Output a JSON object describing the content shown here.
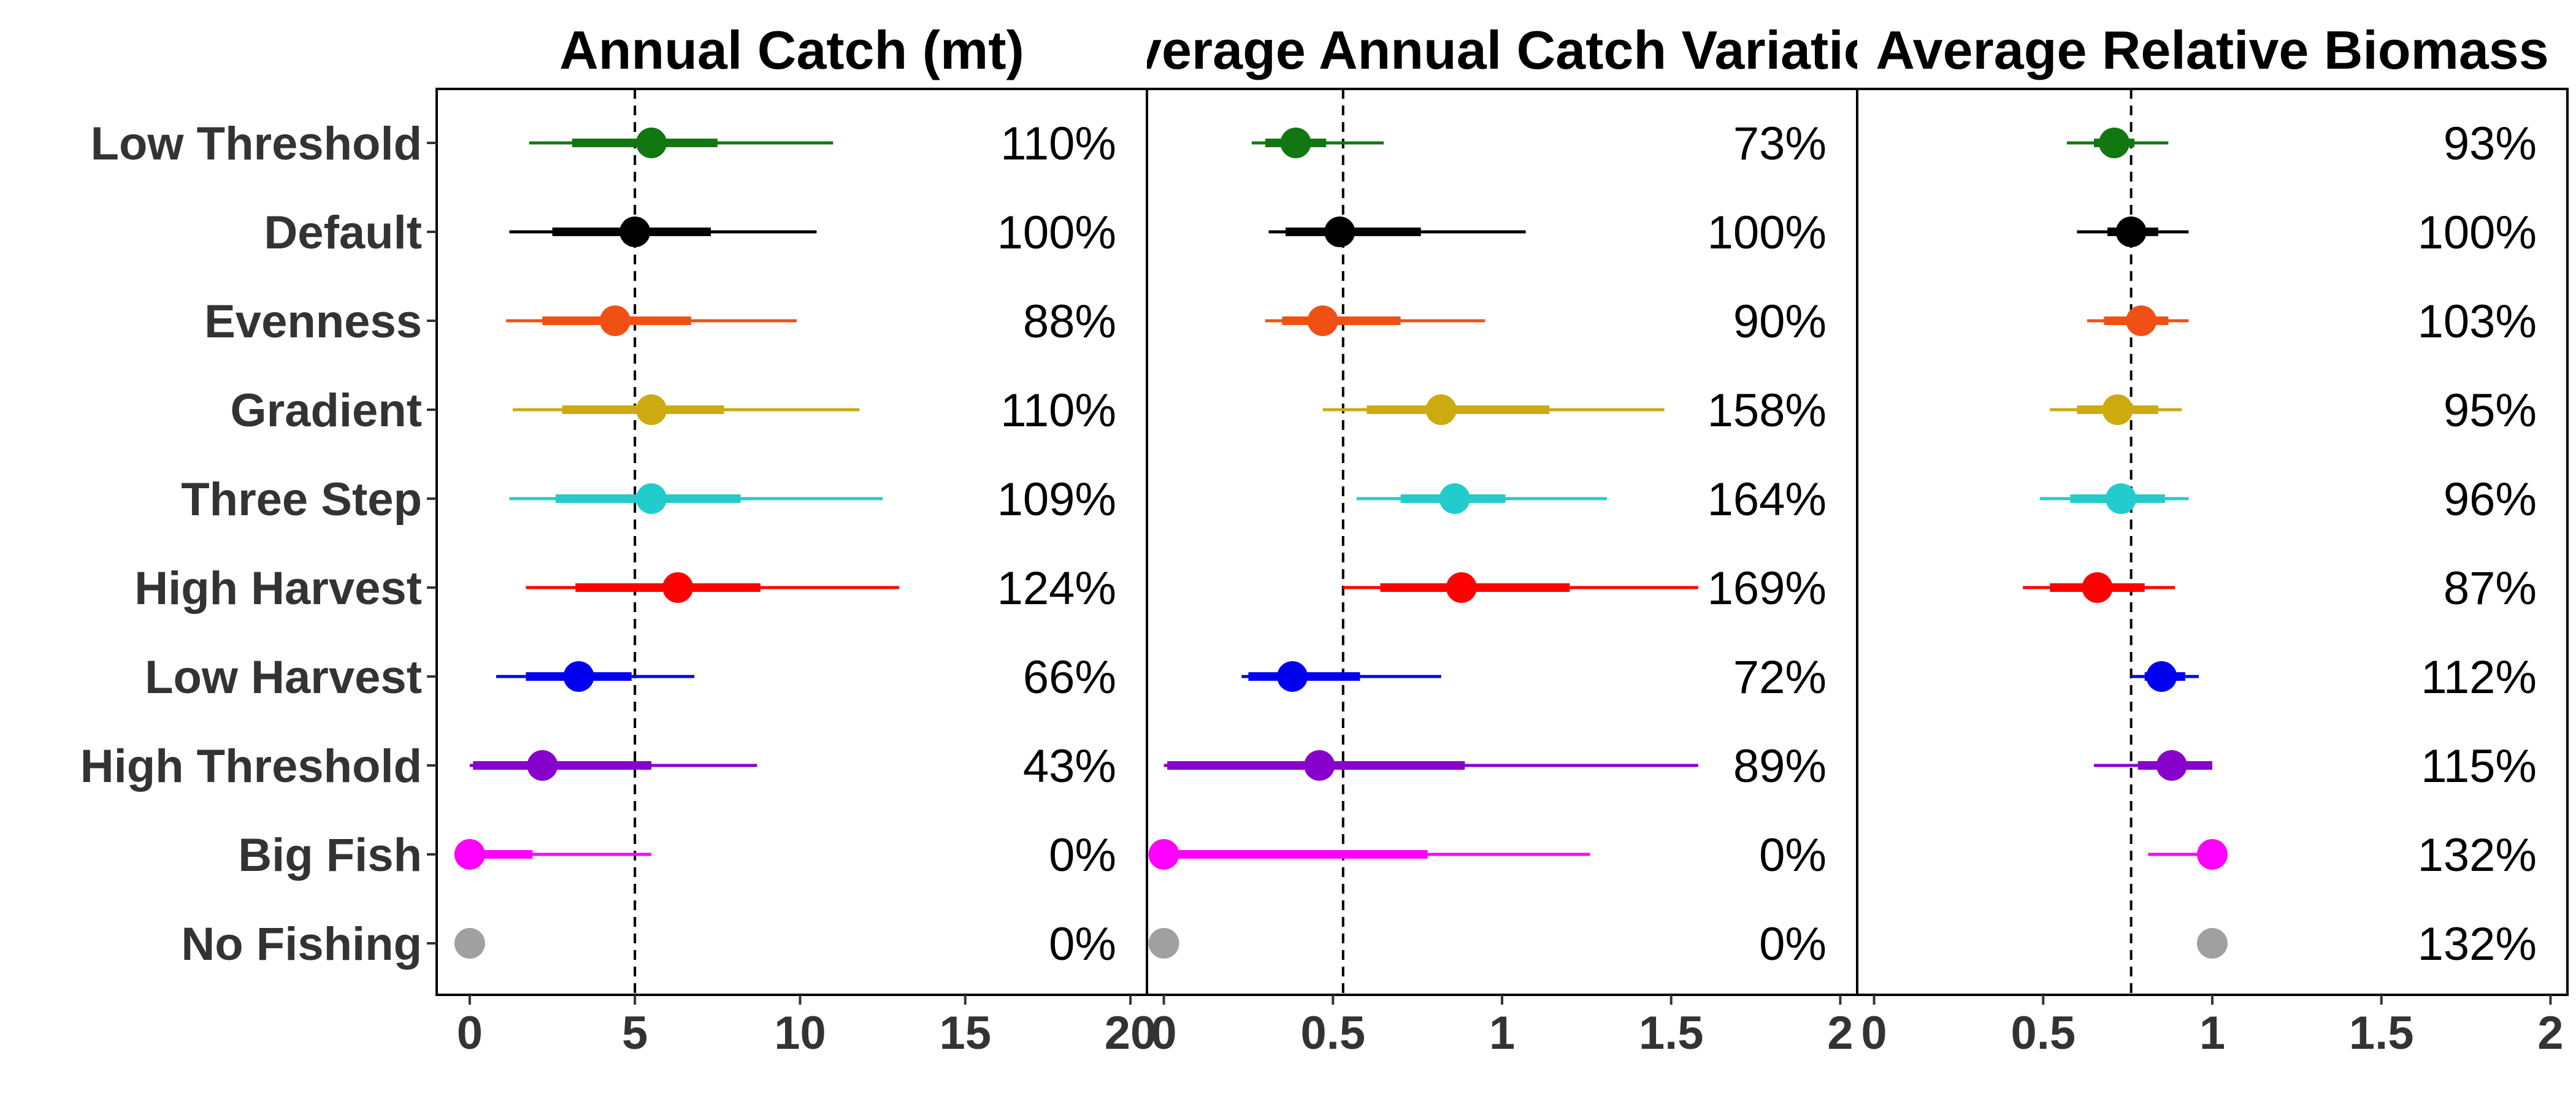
{
  "chart_data": {
    "type": "forest",
    "categories": [
      "Low Threshold",
      "Default",
      "Evenness",
      "Gradient",
      "Three Step",
      "High Harvest",
      "Low Harvest",
      "High Threshold",
      "Big Fish",
      "No Fishing"
    ],
    "colors": [
      "#117711",
      "#000000",
      "#f05014",
      "#ccaa10",
      "#22cccc",
      "#ff0000",
      "#0000ee",
      "#8800cc",
      "#ff00ff",
      "#a0a0a0"
    ],
    "panels": [
      {
        "title": "Annual Catch (mt)",
        "xlim": [
          -1,
          20.5
        ],
        "ticks": [
          0,
          5,
          10,
          15,
          20
        ],
        "tick_labels": [
          "0",
          "5",
          "10",
          "15",
          "20"
        ],
        "reference": 5,
        "median": [
          5.5,
          5.0,
          4.4,
          5.5,
          5.5,
          6.3,
          3.3,
          2.2,
          0.0,
          0.0
        ],
        "inner": [
          [
            3.1,
            7.5
          ],
          [
            2.5,
            7.3
          ],
          [
            2.2,
            6.7
          ],
          [
            2.8,
            7.7
          ],
          [
            2.6,
            8.2
          ],
          [
            3.2,
            8.8
          ],
          [
            1.7,
            4.9
          ],
          [
            0.1,
            5.5
          ],
          [
            0.0,
            1.9
          ],
          [
            0.0,
            0.0
          ]
        ],
        "outer": [
          [
            1.8,
            11.0
          ],
          [
            1.2,
            10.5
          ],
          [
            1.1,
            9.9
          ],
          [
            1.3,
            11.8
          ],
          [
            1.2,
            12.5
          ],
          [
            1.7,
            13.0
          ],
          [
            0.8,
            6.8
          ],
          [
            0.0,
            8.7
          ],
          [
            0.0,
            5.5
          ],
          [
            0.0,
            0.0
          ]
        ],
        "percent_labels": [
          "110%",
          "100%",
          "88%",
          "110%",
          "109%",
          "124%",
          "66%",
          "43%",
          "0%",
          "0%"
        ]
      },
      {
        "title": "Average Annual Catch Variation",
        "xlim": [
          -0.05,
          2.05
        ],
        "ticks": [
          0,
          0.5,
          1,
          1.5,
          2
        ],
        "tick_labels": [
          "0",
          "0.5",
          "1",
          "1.5",
          "2"
        ],
        "reference": 0.53,
        "median": [
          0.39,
          0.52,
          0.47,
          0.82,
          0.86,
          0.88,
          0.38,
          0.46,
          0.0,
          0.0
        ],
        "inner": [
          [
            0.3,
            0.48
          ],
          [
            0.36,
            0.76
          ],
          [
            0.35,
            0.7
          ],
          [
            0.6,
            1.14
          ],
          [
            0.7,
            1.01
          ],
          [
            0.64,
            1.2
          ],
          [
            0.25,
            0.58
          ],
          [
            0.01,
            0.89
          ],
          [
            0.0,
            0.78
          ],
          [
            0.0,
            0.0
          ]
        ],
        "outer": [
          [
            0.26,
            0.65
          ],
          [
            0.31,
            1.07
          ],
          [
            0.3,
            0.95
          ],
          [
            0.47,
            1.48
          ],
          [
            0.57,
            1.31
          ],
          [
            0.53,
            1.58
          ],
          [
            0.23,
            0.82
          ],
          [
            0.0,
            1.58
          ],
          [
            0.0,
            1.26
          ],
          [
            0.0,
            0.0
          ]
        ],
        "percent_labels": [
          "73%",
          "100%",
          "90%",
          "158%",
          "164%",
          "169%",
          "72%",
          "89%",
          "0%",
          "0%"
        ]
      },
      {
        "title": "Average Relative Biomass",
        "xlim": [
          -0.05,
          2.05
        ],
        "ticks": [
          0,
          0.5,
          1,
          1.5,
          2
        ],
        "tick_labels": [
          "0",
          "0.5",
          "1",
          "1.5",
          "2"
        ],
        "reference": 0.76,
        "median": [
          0.71,
          0.76,
          0.79,
          0.72,
          0.73,
          0.66,
          0.85,
          0.88,
          1.0,
          1.0
        ],
        "inner": [
          [
            0.65,
            0.77
          ],
          [
            0.69,
            0.84
          ],
          [
            0.68,
            0.87
          ],
          [
            0.6,
            0.84
          ],
          [
            0.58,
            0.86
          ],
          [
            0.52,
            0.8
          ],
          [
            0.8,
            0.92
          ],
          [
            0.78,
            1.0
          ],
          [
            1.0,
            1.0
          ],
          [
            1.0,
            1.0
          ]
        ],
        "outer": [
          [
            0.57,
            0.87
          ],
          [
            0.6,
            0.93
          ],
          [
            0.63,
            0.93
          ],
          [
            0.52,
            0.91
          ],
          [
            0.49,
            0.93
          ],
          [
            0.44,
            0.89
          ],
          [
            0.76,
            0.96
          ],
          [
            0.65,
            1.0
          ],
          [
            0.81,
            1.0
          ],
          [
            1.0,
            1.0
          ]
        ],
        "percent_labels": [
          "93%",
          "100%",
          "103%",
          "95%",
          "96%",
          "87%",
          "112%",
          "115%",
          "132%",
          "132%"
        ]
      }
    ]
  }
}
